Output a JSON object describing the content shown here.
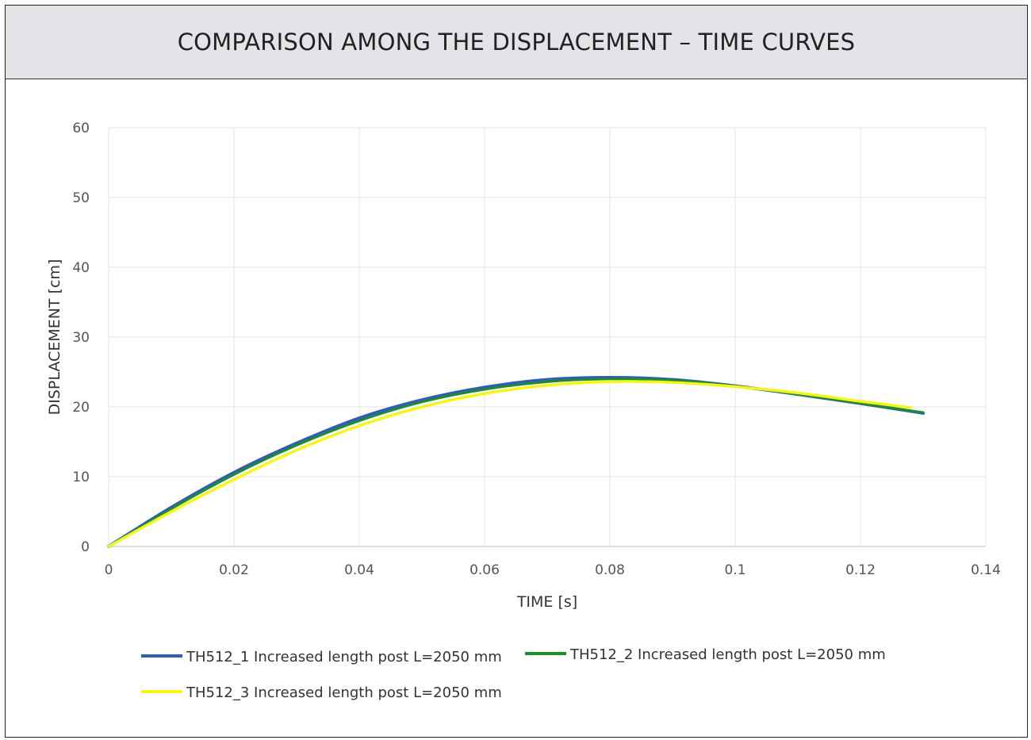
{
  "chart_data": {
    "type": "line",
    "title": "COMPARISON AMONG THE DISPLACEMENT – TIME CURVES",
    "xlabel": "TIME [s]",
    "ylabel": "DISPLACEMENT [cm]",
    "xlim": [
      0,
      0.14
    ],
    "ylim": [
      0,
      60
    ],
    "x_ticks": [
      "0",
      "0.02",
      "0.04",
      "0.06",
      "0.08",
      "0.1",
      "0.12",
      "0.14"
    ],
    "y_ticks": [
      "0",
      "10",
      "20",
      "30",
      "40",
      "50",
      "60"
    ],
    "grid": true,
    "legend_position": "bottom",
    "series": [
      {
        "name": "TH512_1 Increased length post L=2050 mm",
        "color": "#2f5fb3",
        "x": [
          0,
          0.01,
          0.02,
          0.03,
          0.04,
          0.05,
          0.06,
          0.07,
          0.08,
          0.09,
          0.1,
          0.11,
          0.12,
          0.13
        ],
        "y": [
          0,
          5.6,
          10.6,
          14.8,
          18.4,
          21.0,
          22.8,
          23.9,
          24.2,
          23.9,
          23.0,
          21.8,
          20.5,
          19.1
        ]
      },
      {
        "name": "TH512_2 Increased length post L=2050 mm",
        "color": "#1e8c2e",
        "x": [
          0,
          0.01,
          0.02,
          0.03,
          0.04,
          0.05,
          0.06,
          0.07,
          0.08,
          0.09,
          0.1,
          0.11,
          0.12,
          0.13
        ],
        "y": [
          0,
          5.4,
          10.3,
          14.5,
          18.0,
          20.7,
          22.5,
          23.6,
          24.0,
          23.8,
          23.0,
          21.8,
          20.5,
          19.2
        ]
      },
      {
        "name": "TH512_3 Increased length post L=2050 mm",
        "color": "#f5f51a",
        "x": [
          0,
          0.01,
          0.02,
          0.03,
          0.04,
          0.05,
          0.06,
          0.07,
          0.08,
          0.09,
          0.1,
          0.11,
          0.12,
          0.128
        ],
        "y": [
          0,
          5.0,
          9.6,
          13.8,
          17.3,
          20.0,
          21.9,
          23.1,
          23.6,
          23.5,
          22.9,
          22.0,
          20.8,
          19.9
        ]
      }
    ]
  }
}
